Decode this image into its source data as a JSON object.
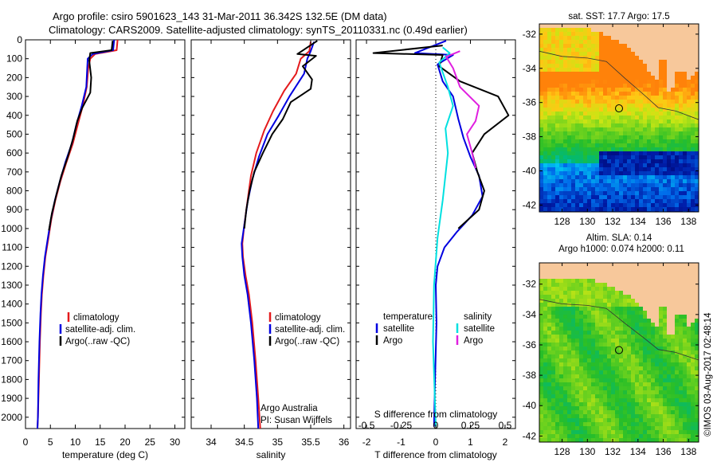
{
  "header": {
    "line1": "Argo profile: csiro 5901623_143 31-Mar-2011 36.342S 132.5E (DM data)",
    "line2": "Climatology: CARS2009. Satellite-adjusted climatology: synTS_20110331.nc (0.49d earlier)"
  },
  "colors": {
    "climatology": "#e41a1c",
    "satellite": "#0000e0",
    "argo": "#000000",
    "sal_satellite": "#00e0e0",
    "sal_argo": "#e020e0"
  },
  "legend_profiles": [
    "climatology",
    "satellite-adj. clim.",
    "Argo(..raw -QC)"
  ],
  "credit": {
    "line1": "Argo Australia",
    "line2": "PI: Susan Wijffels"
  },
  "diff_legend": {
    "temp_header": "temperature",
    "sal_header": "salinity",
    "satellite": "satellite",
    "argo": "Argo"
  },
  "map_top": {
    "title": "sat. SST: 17.7 Argo: 17.5"
  },
  "map_bottom": {
    "title1": "Altim. SLA: 0.14",
    "title2": "Argo h1000: 0.074 h2000: 0.11"
  },
  "timestamp": "©IMOS 03-Aug-2017 02:48:14",
  "chart_data": [
    {
      "type": "line",
      "name": "temperature",
      "xlabel": "temperature (deg C)",
      "xlim": [
        0,
        32
      ],
      "ylim": [
        2060,
        0
      ],
      "xticks": [
        0,
        5,
        10,
        15,
        20,
        25,
        30
      ],
      "yticks": [
        0,
        100,
        200,
        300,
        400,
        500,
        600,
        700,
        800,
        900,
        1000,
        1100,
        1200,
        1300,
        1400,
        1500,
        1600,
        1700,
        1800,
        1900,
        2000
      ],
      "series": [
        {
          "name": "climatology",
          "color": "#e41a1c",
          "points": [
            [
              18.5,
              0
            ],
            [
              18.3,
              55
            ],
            [
              14,
              75
            ],
            [
              13,
              100
            ],
            [
              12.6,
              150
            ],
            [
              12.3,
              250
            ],
            [
              11.5,
              350
            ],
            [
              10.5,
              450
            ],
            [
              9.5,
              550
            ],
            [
              8.2,
              650
            ],
            [
              7,
              750
            ],
            [
              6,
              850
            ],
            [
              5.2,
              950
            ],
            [
              4.6,
              1050
            ],
            [
              4,
              1150
            ],
            [
              3.6,
              1250
            ],
            [
              3.3,
              1350
            ],
            [
              3.1,
              1450
            ],
            [
              2.9,
              1600
            ],
            [
              2.7,
              1800
            ],
            [
              2.5,
              2000
            ],
            [
              2.4,
              2060
            ]
          ]
        },
        {
          "name": "satellite-adj. clim.",
          "color": "#0000e0",
          "points": [
            [
              17.8,
              0
            ],
            [
              17.6,
              55
            ],
            [
              13.5,
              75
            ],
            [
              12.5,
              100
            ],
            [
              12.4,
              150
            ],
            [
              12.2,
              250
            ],
            [
              11.3,
              350
            ],
            [
              10.2,
              450
            ],
            [
              9.3,
              550
            ],
            [
              8,
              650
            ],
            [
              6.9,
              750
            ],
            [
              5.9,
              850
            ],
            [
              5.1,
              950
            ],
            [
              4.5,
              1050
            ],
            [
              3.9,
              1150
            ],
            [
              3.5,
              1250
            ],
            [
              3.2,
              1350
            ],
            [
              3,
              1450
            ],
            [
              2.8,
              1600
            ],
            [
              2.6,
              1800
            ],
            [
              2.5,
              2000
            ],
            [
              2.4,
              2060
            ]
          ]
        },
        {
          "name": "Argo(..raw -QC)",
          "color": "#000000",
          "points": [
            [
              17.5,
              5
            ],
            [
              17.3,
              55
            ],
            [
              13,
              70
            ],
            [
              12.8,
              110
            ],
            [
              13.2,
              200
            ],
            [
              13,
              280
            ],
            [
              11.4,
              360
            ],
            [
              10.4,
              430
            ],
            [
              9.6,
              520
            ],
            [
              8.5,
              620
            ],
            [
              7.2,
              720
            ],
            [
              6.2,
              820
            ],
            [
              5.3,
              920
            ],
            [
              4.7,
              1010
            ]
          ]
        }
      ]
    },
    {
      "type": "line",
      "name": "salinity",
      "xlabel": "salinity",
      "xlim": [
        33.7,
        36.1
      ],
      "ylim": [
        2060,
        0
      ],
      "xticks": [
        34,
        34.5,
        35,
        35.5,
        36
      ],
      "series": [
        {
          "name": "climatology",
          "color": "#e41a1c",
          "points": [
            [
              35.5,
              10
            ],
            [
              35.48,
              60
            ],
            [
              35.35,
              100
            ],
            [
              35.28,
              180
            ],
            [
              35.1,
              270
            ],
            [
              34.93,
              380
            ],
            [
              34.8,
              480
            ],
            [
              34.68,
              600
            ],
            [
              34.6,
              720
            ],
            [
              34.55,
              850
            ],
            [
              34.5,
              980
            ],
            [
              34.47,
              1080
            ],
            [
              34.48,
              1150
            ],
            [
              34.52,
              1250
            ],
            [
              34.57,
              1350
            ],
            [
              34.62,
              1500
            ],
            [
              34.67,
              1700
            ],
            [
              34.71,
              1900
            ],
            [
              34.74,
              2060
            ]
          ]
        },
        {
          "name": "satellite-adj. clim.",
          "color": "#0000e0",
          "points": [
            [
              35.55,
              10
            ],
            [
              35.5,
              60
            ],
            [
              35.45,
              100
            ],
            [
              35.4,
              180
            ],
            [
              35.18,
              300
            ],
            [
              35.02,
              400
            ],
            [
              34.85,
              500
            ],
            [
              34.72,
              620
            ],
            [
              34.62,
              740
            ],
            [
              34.55,
              860
            ],
            [
              34.5,
              980
            ],
            [
              34.46,
              1080
            ],
            [
              34.47,
              1150
            ],
            [
              34.5,
              1250
            ],
            [
              34.55,
              1350
            ],
            [
              34.6,
              1500
            ],
            [
              34.65,
              1700
            ],
            [
              34.69,
              1900
            ],
            [
              34.71,
              2060
            ]
          ]
        },
        {
          "name": "Argo(..raw -QC)",
          "color": "#000000",
          "points": [
            [
              35.6,
              5
            ],
            [
              35.3,
              75
            ],
            [
              35.58,
              85
            ],
            [
              35.38,
              140
            ],
            [
              35.52,
              210
            ],
            [
              35.5,
              260
            ],
            [
              35.2,
              330
            ],
            [
              35.08,
              420
            ],
            [
              34.92,
              500
            ],
            [
              34.78,
              600
            ],
            [
              34.65,
              700
            ],
            [
              34.58,
              800
            ],
            [
              34.53,
              900
            ],
            [
              34.5,
              1000
            ]
          ]
        }
      ]
    },
    {
      "type": "line",
      "name": "difference",
      "xlabel": "T difference from climatology",
      "top_xlabel": "S difference from climatology",
      "xlim": [
        -2.3,
        2.3
      ],
      "ylim": [
        2060,
        0
      ],
      "xticks": [
        -2,
        -1,
        0,
        1,
        2
      ],
      "top_xticks": [
        "-0.5",
        "-0.25",
        "0",
        "0.25",
        "0.5"
      ],
      "series": [
        {
          "name": "temperature satellite",
          "color": "#0000e0",
          "points": [
            [
              0.3,
              5
            ],
            [
              -0.6,
              70
            ],
            [
              0.5,
              80
            ],
            [
              0.05,
              130
            ],
            [
              0.2,
              220
            ],
            [
              0.5,
              300
            ],
            [
              0.65,
              420
            ],
            [
              0.8,
              520
            ],
            [
              1,
              620
            ],
            [
              1.25,
              720
            ],
            [
              1.35,
              830
            ],
            [
              1.05,
              930
            ],
            [
              0.6,
              1020
            ],
            [
              0.25,
              1100
            ],
            [
              0.05,
              1200
            ],
            [
              0,
              1300
            ],
            [
              0.02,
              1500
            ],
            [
              -0.02,
              1800
            ],
            [
              -0.05,
              2050
            ]
          ]
        },
        {
          "name": "temperature Argo",
          "color": "#000000",
          "points": [
            [
              0.2,
              30
            ],
            [
              -1.8,
              70
            ],
            [
              0.2,
              80
            ],
            [
              0.1,
              140
            ],
            [
              0.7,
              220
            ],
            [
              1.8,
              300
            ],
            [
              2.1,
              400
            ],
            [
              1.4,
              500
            ],
            [
              1.05,
              600
            ],
            [
              1.2,
              700
            ],
            [
              1.4,
              800
            ],
            [
              1.25,
              900
            ],
            [
              0.65,
              1000
            ]
          ]
        },
        {
          "name": "salinity satellite",
          "color": "#00e0e0",
          "points": [
            [
              0.2,
              40
            ],
            [
              0.4,
              70
            ],
            [
              0.1,
              120
            ],
            [
              0.35,
              250
            ],
            [
              0.5,
              350
            ],
            [
              0.28,
              470
            ],
            [
              0.35,
              600
            ],
            [
              0.2,
              850
            ],
            [
              0.05,
              1050
            ],
            [
              -0.05,
              1300
            ],
            [
              -0.08,
              1600
            ],
            [
              0,
              2050
            ]
          ]
        },
        {
          "name": "salinity Argo",
          "color": "#e020e0",
          "points": [
            [
              0.7,
              60
            ],
            [
              0.3,
              90
            ],
            [
              0.5,
              150
            ],
            [
              0.7,
              250
            ],
            [
              1.25,
              350
            ],
            [
              1.15,
              430
            ],
            [
              0.9,
              500
            ],
            [
              1.05,
              600
            ],
            [
              1.15,
              680
            ]
          ]
        }
      ]
    },
    {
      "type": "heatmap",
      "name": "sat-sst-map",
      "title": "sat. SST: 17.7 Argo: 17.5",
      "xlim": [
        126.2,
        138.8
      ],
      "ylim": [
        -42.4,
        -31.4
      ],
      "xticks": [
        128,
        130,
        132,
        134,
        136,
        138
      ],
      "yticks": [
        -32,
        -34,
        -36,
        -38,
        -40,
        -42
      ],
      "marker": [
        132.5,
        -36.342
      ]
    },
    {
      "type": "heatmap",
      "name": "altimetry-map",
      "title": "Altim. SLA: 0.14",
      "xlim": [
        126.2,
        138.8
      ],
      "ylim": [
        -42.4,
        -30.6
      ],
      "xticks": [
        128,
        130,
        132,
        134,
        136,
        138
      ],
      "yticks": [
        -32,
        -34,
        -36,
        -38,
        -40,
        -42
      ],
      "marker": [
        132.5,
        -36.342
      ]
    }
  ]
}
